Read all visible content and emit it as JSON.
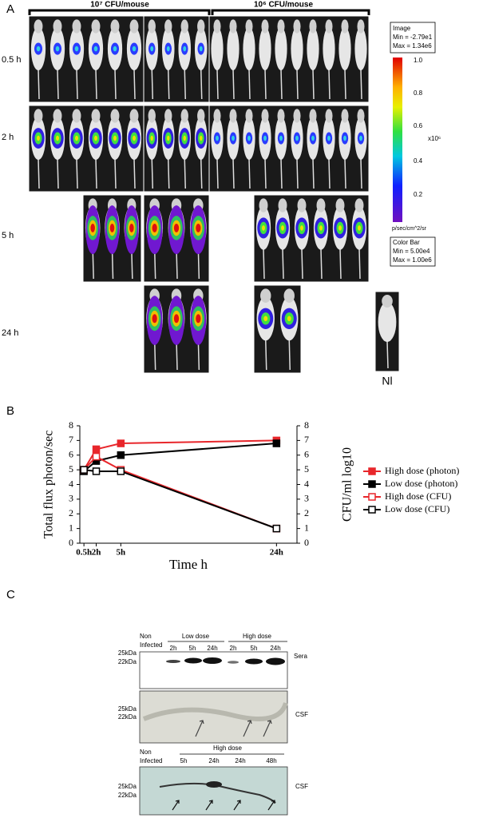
{
  "panel_a": {
    "label": "A",
    "doses": [
      "10⁷ CFU/mouse",
      "10⁶ CFU/mouse"
    ],
    "times": [
      "0.5 h",
      "2 h",
      "5 h",
      "24 h"
    ],
    "normal": "Nl",
    "image_box": {
      "title": "Image",
      "min": "Min = -2.79e1",
      "max": "Max = 1.34e6"
    },
    "color_bar": {
      "ticks": [
        "1.0",
        "0.8",
        "0.6",
        "0.4",
        "0.2"
      ],
      "multiplier": "x10⁶",
      "unit": "p/sec/cm^2/sr",
      "title": "Color Bar",
      "min": "Min = 5.00e4",
      "max": "Max = 1.00e6"
    }
  },
  "panel_b": {
    "label": "B"
  },
  "chart_data": {
    "type": "line",
    "xlabel": "Time h",
    "ylabel": "Total flux photon/sec",
    "y2label": "CFU/ml log10",
    "x": [
      0.5,
      2,
      5,
      24
    ],
    "xticks": [
      {
        "value": 0.5,
        "label": "0.5h"
      },
      {
        "value": 2,
        "label": "2h"
      },
      {
        "value": 5,
        "label": "5h"
      },
      {
        "value": 24,
        "label": "24h"
      }
    ],
    "xlim": [
      0,
      26.5
    ],
    "ylim": [
      0,
      8
    ],
    "yticks": [
      0,
      1,
      2,
      3,
      4,
      5,
      6,
      7,
      8
    ],
    "y2lim": [
      0,
      8
    ],
    "y2ticks": [
      0,
      1,
      2,
      3,
      4,
      5,
      6,
      7,
      8
    ],
    "legend": "right",
    "series": [
      {
        "name": "High dose (photon)",
        "color": "#e8262b",
        "marker": "filled",
        "values": [
          5.0,
          6.4,
          6.8,
          7.0
        ]
      },
      {
        "name": "Low dose (photon)",
        "color": "#000000",
        "marker": "filled",
        "values": [
          4.9,
          5.6,
          6.0,
          6.8
        ]
      },
      {
        "name": "High dose (CFU)",
        "color": "#e8262b",
        "marker": "open",
        "axis": "y2",
        "values": [
          5.0,
          5.9,
          5.0,
          1.0
        ]
      },
      {
        "name": "Low dose (CFU)",
        "color": "#000000",
        "marker": "open",
        "axis": "y2",
        "values": [
          5.0,
          4.9,
          4.9,
          1.0
        ]
      }
    ]
  },
  "panel_c": {
    "label": "C",
    "blot_1": {
      "non_infected": [
        "Non",
        "Infected"
      ],
      "groups": [
        "Low dose",
        "High dose"
      ],
      "lanes": [
        "2h",
        "5h",
        "24h",
        "2h",
        "5h",
        "24h"
      ],
      "markers": [
        "25kDa",
        "22kDa"
      ],
      "sample": "Sera"
    },
    "blot_2": {
      "markers": [
        "25kDa",
        "22kDa"
      ],
      "sample": "CSF"
    },
    "blot_3": {
      "non_infected": [
        "Non",
        "Infected"
      ],
      "group": "High dose",
      "lanes": [
        "5h",
        "24h",
        "24h",
        "48h"
      ],
      "markers": [
        "25kDa",
        "22kDa"
      ],
      "sample": "CSF"
    }
  }
}
